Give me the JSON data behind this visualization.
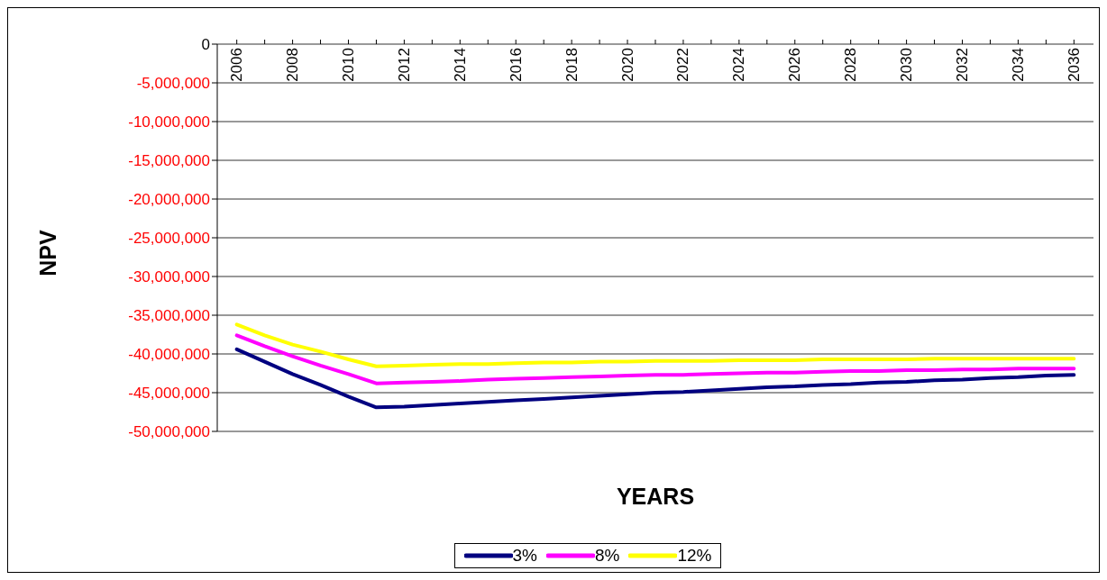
{
  "chart_data": {
    "type": "line",
    "xlabel": "YEARS",
    "ylabel": "NPV",
    "categories": [
      "2006",
      null,
      "2008",
      null,
      "2010",
      null,
      "2012",
      null,
      "2014",
      null,
      "2016",
      null,
      "2018",
      null,
      "2020",
      null,
      "2022",
      null,
      "2024",
      null,
      "2026",
      null,
      "2028",
      null,
      "2030",
      null,
      "2032",
      null,
      "2034",
      null,
      "2036"
    ],
    "ylim": [
      -50000000,
      0
    ],
    "yticks": [
      0,
      {
        "value": -5000000,
        "label": "-5,000,000"
      },
      {
        "value": -10000000,
        "label": "-10,000,000"
      },
      {
        "value": -15000000,
        "label": "-15,000,000"
      },
      {
        "value": -20000000,
        "label": "-20,000,000"
      },
      {
        "value": -25000000,
        "label": "-25,000,000"
      },
      {
        "value": -30000000,
        "label": "-30,000,000"
      },
      {
        "value": -35000000,
        "label": "-35,000,000"
      },
      {
        "value": -40000000,
        "label": "-40,000,000"
      },
      {
        "value": -45000000,
        "label": "-45,000,000"
      },
      {
        "value": -50000000,
        "label": "-50,000,000"
      }
    ],
    "grid": "y",
    "legend": "bottom",
    "series": [
      {
        "name": "3%",
        "color": "#000080",
        "values": [
          -39400000,
          -41000000,
          -42600000,
          -44000000,
          -45500000,
          -46900000,
          -46800000,
          -46600000,
          -46400000,
          -46200000,
          -46000000,
          -45800000,
          -45600000,
          -45400000,
          -45200000,
          -45000000,
          -44900000,
          -44700000,
          -44500000,
          -44300000,
          -44200000,
          -44000000,
          -43900000,
          -43700000,
          -43600000,
          -43400000,
          -43300000,
          -43100000,
          -43000000,
          -42800000,
          -42700000
        ]
      },
      {
        "name": "8%",
        "color": "#ff00ff",
        "values": [
          -37600000,
          -39000000,
          -40300000,
          -41500000,
          -42600000,
          -43800000,
          -43700000,
          -43600000,
          -43500000,
          -43300000,
          -43200000,
          -43100000,
          -43000000,
          -42900000,
          -42800000,
          -42700000,
          -42700000,
          -42600000,
          -42500000,
          -42400000,
          -42400000,
          -42300000,
          -42200000,
          -42200000,
          -42100000,
          -42100000,
          -42000000,
          -42000000,
          -41900000,
          -41900000,
          -41900000
        ]
      },
      {
        "name": "12%",
        "color": "#ffff00",
        "values": [
          -36200000,
          -37600000,
          -38800000,
          -39700000,
          -40700000,
          -41600000,
          -41500000,
          -41400000,
          -41300000,
          -41300000,
          -41200000,
          -41100000,
          -41100000,
          -41000000,
          -41000000,
          -40900000,
          -40900000,
          -40900000,
          -40800000,
          -40800000,
          -40800000,
          -40700000,
          -40700000,
          -40700000,
          -40700000,
          -40600000,
          -40600000,
          -40600000,
          -40600000,
          -40600000,
          -40600000
        ]
      }
    ]
  }
}
